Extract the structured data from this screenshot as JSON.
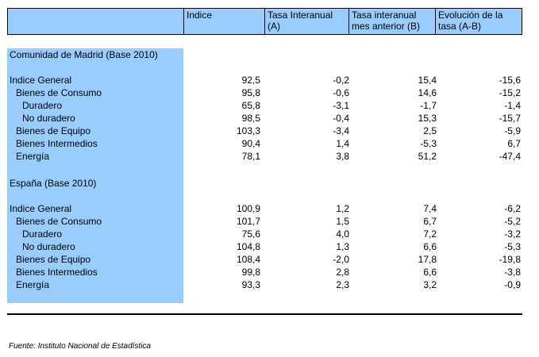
{
  "header": {
    "col1": "Indice",
    "col2_line1": "Tasa Interanual",
    "col2_line2": "(A)",
    "col3_line1": "Tasa interanual",
    "col3_line2": "mes anterior (B)",
    "col4_line1": "Evolución de la",
    "col4_line2": "tasa (A-B)"
  },
  "madrid": {
    "title": "Comunidad de Madrid (Base 2010)",
    "rows": [
      {
        "label": "Indice General",
        "v1": "92,5",
        "v2": "-0,2",
        "v3": "15,4",
        "v4": "-15,6"
      },
      {
        "label": "Bienes de Consumo",
        "v1": "95,8",
        "v2": "-0,6",
        "v3": "14,6",
        "v4": "-15,2"
      },
      {
        "label": "Duradero",
        "v1": "65,8",
        "v2": "-3,1",
        "v3": "-1,7",
        "v4": "-1,4"
      },
      {
        "label": "No duradero",
        "v1": "98,5",
        "v2": "-0,4",
        "v3": "15,3",
        "v4": "-15,7"
      },
      {
        "label": "Bienes de Equipo",
        "v1": "103,3",
        "v2": "-3,4",
        "v3": "2,5",
        "v4": "-5,9"
      },
      {
        "label": "Bienes Intermedios",
        "v1": "90,4",
        "v2": "1,4",
        "v3": "-5,3",
        "v4": "6,7"
      },
      {
        "label": "Energía",
        "v1": "78,1",
        "v2": "3,8",
        "v3": "51,2",
        "v4": "-47,4"
      }
    ]
  },
  "spain": {
    "title": "España (Base 2010)",
    "rows": [
      {
        "label": "Indice General",
        "v1": "100,9",
        "v2": "1,2",
        "v3": "7,4",
        "v4": "-6,2"
      },
      {
        "label": "Bienes de Consumo",
        "v1": "101,7",
        "v2": "1,5",
        "v3": "6,7",
        "v4": "-5,2"
      },
      {
        "label": "Duradero",
        "v1": "75,6",
        "v2": "4,0",
        "v3": "7,2",
        "v4": "-3,2"
      },
      {
        "label": "No duradero",
        "v1": "104,8",
        "v2": "1,3",
        "v3": "6,6",
        "v4": "-5,3"
      },
      {
        "label": "Bienes de Equipo",
        "v1": "108,4",
        "v2": "-2,0",
        "v3": "17,8",
        "v4": "-19,8"
      },
      {
        "label": "Bienes Intermedios",
        "v1": "99,8",
        "v2": "2,8",
        "v3": "6,6",
        "v4": "-3,8"
      },
      {
        "label": "Energía",
        "v1": "93,3",
        "v2": "2,3",
        "v3": "3,2",
        "v4": "-0,9"
      }
    ]
  },
  "footer": "Fuente: Instituto Nacional de Estadística"
}
